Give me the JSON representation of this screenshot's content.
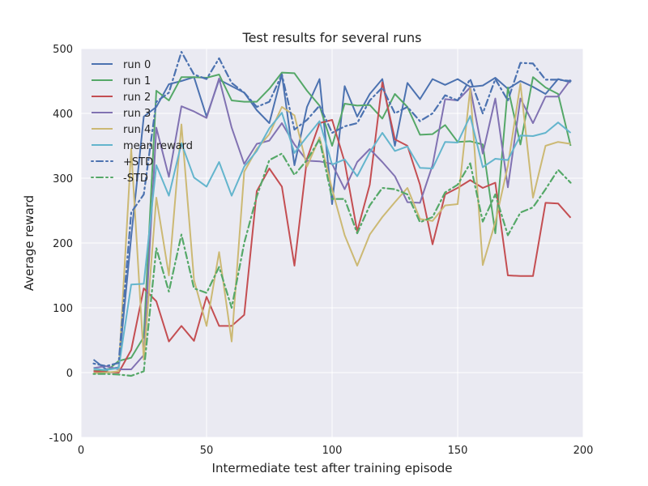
{
  "chart_data": {
    "type": "line",
    "title": "Test results for several runs",
    "xlabel": "Intermediate test after training episode",
    "ylabel": "Average reward",
    "xlim": [
      0,
      200
    ],
    "ylim": [
      -100,
      500
    ],
    "xticks": [
      0,
      50,
      100,
      150,
      200
    ],
    "yticks": [
      -100,
      0,
      100,
      200,
      300,
      400,
      500
    ],
    "grid": true,
    "legend_position": "top-left",
    "x": [
      5,
      10,
      15,
      20,
      25,
      30,
      35,
      40,
      45,
      50,
      55,
      60,
      65,
      70,
      75,
      80,
      85,
      90,
      95,
      100,
      105,
      110,
      115,
      120,
      125,
      130,
      135,
      140,
      145,
      150,
      155,
      160,
      165,
      170,
      175,
      180,
      185,
      190,
      195
    ],
    "series": [
      {
        "name": "run 0",
        "color": "#4c72b0",
        "style": "solid",
        "values": [
          20,
          5,
          8,
          210,
          395,
          410,
          445,
          450,
          456,
          395,
          452,
          442,
          432,
          405,
          385,
          460,
          320,
          410,
          453,
          260,
          442,
          395,
          430,
          453,
          350,
          447,
          422,
          453,
          444,
          453,
          441,
          443,
          455,
          438,
          450,
          441,
          430,
          453,
          448
        ]
      },
      {
        "name": "run 1",
        "color": "#55a868",
        "style": "solid",
        "values": [
          3,
          2,
          18,
          23,
          55,
          435,
          420,
          456,
          456,
          455,
          460,
          420,
          418,
          418,
          438,
          463,
          462,
          435,
          412,
          350,
          415,
          412,
          413,
          392,
          430,
          410,
          367,
          368,
          382,
          356,
          357,
          352,
          215,
          440,
          352,
          456,
          440,
          430,
          350
        ]
      },
      {
        "name": "run 2",
        "color": "#c44e52",
        "style": "solid",
        "values": [
          2,
          1,
          0,
          35,
          130,
          110,
          48,
          72,
          49,
          117,
          72,
          72,
          89,
          280,
          315,
          287,
          165,
          330,
          385,
          390,
          325,
          218,
          290,
          448,
          360,
          350,
          290,
          198,
          275,
          285,
          297,
          285,
          293,
          150,
          149,
          149,
          262,
          261,
          239
        ]
      },
      {
        "name": "run 3",
        "color": "#8172b2",
        "style": "solid",
        "values": [
          7,
          10,
          5,
          5,
          27,
          378,
          302,
          411,
          403,
          393,
          454,
          378,
          322,
          353,
          358,
          385,
          352,
          327,
          326,
          322,
          283,
          325,
          345,
          325,
          303,
          263,
          262,
          320,
          422,
          420,
          440,
          338,
          423,
          286,
          423,
          385,
          426,
          426,
          452
        ]
      },
      {
        "name": "run 4",
        "color": "#ccb974",
        "style": "solid",
        "values": [
          -1,
          0,
          2,
          345,
          20,
          270,
          150,
          383,
          143,
          72,
          186,
          48,
          310,
          345,
          368,
          410,
          397,
          318,
          363,
          283,
          212,
          165,
          213,
          240,
          263,
          285,
          237,
          234,
          258,
          260,
          438,
          166,
          232,
          319,
          446,
          270,
          350,
          356,
          353
        ]
      },
      {
        "name": "mean reward",
        "color": "#64b5cd",
        "style": "solid",
        "values": [
          6,
          4,
          7,
          136,
          137,
          320,
          273,
          354,
          301,
          287,
          325,
          273,
          318,
          342,
          377,
          401,
          339,
          364,
          388,
          321,
          329,
          303,
          340,
          370,
          342,
          349,
          316,
          315,
          356,
          355,
          396,
          317,
          330,
          328,
          366,
          365,
          370,
          386,
          370
        ]
      },
      {
        "name": "+STD",
        "color": "#4c72b0",
        "style": "dotted",
        "values": [
          14,
          10,
          15,
          247,
          275,
          418,
          432,
          495,
          460,
          453,
          485,
          447,
          432,
          410,
          418,
          460,
          375,
          390,
          412,
          370,
          380,
          385,
          420,
          440,
          400,
          410,
          388,
          400,
          428,
          420,
          453,
          400,
          453,
          420,
          478,
          477,
          452,
          452,
          450
        ]
      },
      {
        "name": "-STD",
        "color": "#55a868",
        "style": "dotted",
        "values": [
          -2,
          -2,
          -3,
          -5,
          2,
          192,
          125,
          213,
          130,
          123,
          163,
          100,
          200,
          272,
          328,
          338,
          305,
          328,
          360,
          268,
          268,
          215,
          258,
          285,
          283,
          275,
          232,
          240,
          278,
          290,
          323,
          233,
          275,
          212,
          247,
          255,
          283,
          313,
          293
        ]
      }
    ]
  }
}
